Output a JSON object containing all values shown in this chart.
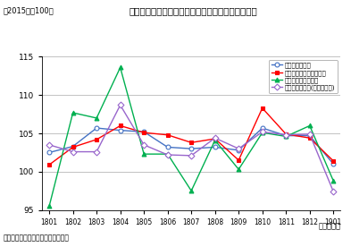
{
  "title": "景気動向指数の一致系列（鉱工業指数関連）の推移",
  "subtitle": "（2015年＝100）",
  "xlabel": "（年・月）",
  "source_note": "（資料）経済産業省「鉱工業指数」",
  "x_labels": [
    "1801",
    "1802",
    "1803",
    "1804",
    "1805",
    "1806",
    "1807",
    "1808",
    "1809",
    "1810",
    "1811",
    "1812",
    "1901"
  ],
  "ylim": [
    95,
    115
  ],
  "yticks": [
    95,
    100,
    105,
    110,
    115
  ],
  "series": [
    {
      "label": "鉱工業生産指数",
      "color": "#4472C4",
      "marker": "o",
      "marker_face": "white",
      "marker_edge": "#4472C4",
      "values": [
        102.5,
        103.3,
        105.7,
        105.4,
        105.2,
        103.2,
        103.0,
        103.2,
        102.8,
        105.7,
        104.7,
        104.7,
        101.0
      ]
    },
    {
      "label": "鉱工業用生産財出荷指数",
      "color": "#FF0000",
      "marker": "s",
      "marker_face": "#FF0000",
      "marker_edge": "#FF0000",
      "values": [
        100.9,
        103.2,
        104.2,
        106.0,
        105.1,
        104.8,
        103.8,
        104.3,
        101.5,
        108.3,
        104.9,
        104.4,
        101.4
      ]
    },
    {
      "label": "耐久消費財出荷指数",
      "color": "#00B050",
      "marker": "^",
      "marker_face": "#00B050",
      "marker_edge": "#00B050",
      "values": [
        95.5,
        107.7,
        107.0,
        113.6,
        102.3,
        102.3,
        97.5,
        104.1,
        100.3,
        105.1,
        104.6,
        106.0,
        98.8
      ]
    },
    {
      "label": "投資財出荷指数(除輸送機械)",
      "color": "#9966CC",
      "marker": "D",
      "marker_face": "white",
      "marker_edge": "#9966CC",
      "values": [
        103.5,
        102.6,
        102.6,
        108.7,
        103.5,
        102.2,
        102.1,
        104.4,
        103.0,
        105.2,
        104.8,
        104.9,
        97.4
      ]
    }
  ],
  "background_color": "#FFFFFF",
  "grid_color": "#AAAAAA",
  "plot_bg": "#FFFFFF"
}
